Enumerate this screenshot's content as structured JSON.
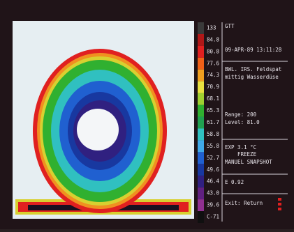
{
  "scale": {
    "items": [
      {
        "label": "133",
        "color": "#3a3a3a"
      },
      {
        "label": "84.8",
        "color": "#b01818"
      },
      {
        "label": "80.8",
        "color": "#e02020"
      },
      {
        "label": "77.6",
        "color": "#f06018"
      },
      {
        "label": "74.3",
        "color": "#f0a020"
      },
      {
        "label": "70.9",
        "color": "#e8e040"
      },
      {
        "label": "68.1",
        "color": "#a0d030"
      },
      {
        "label": "65.3",
        "color": "#30b030"
      },
      {
        "label": "61.7",
        "color": "#20a050"
      },
      {
        "label": "58.8",
        "color": "#30c0c0"
      },
      {
        "label": "55.8",
        "color": "#40a8e8"
      },
      {
        "label": "52.7",
        "color": "#2060d0"
      },
      {
        "label": "49.6",
        "color": "#1838a0"
      },
      {
        "label": "46.4",
        "color": "#302080"
      },
      {
        "label": "43.0",
        "color": "#602080"
      },
      {
        "label": "39.6",
        "color": "#903090"
      },
      {
        "label": "C-71",
        "color": "#101010"
      }
    ]
  },
  "panel": {
    "mode": "GTT",
    "datetime": "09-APR-89 13:11:28",
    "description": [
      "BWL. IRS. Feldspat",
      "mittig Wasserdüse"
    ],
    "range": "Range: 200",
    "level": "Level: 81.0",
    "exposure": "EXP   3.1   °C",
    "freeze": "FREEZE",
    "snapshot": "MANUEL SNAPSHOT",
    "emissivity": "E 0.92",
    "exit": "Exit: Return"
  }
}
